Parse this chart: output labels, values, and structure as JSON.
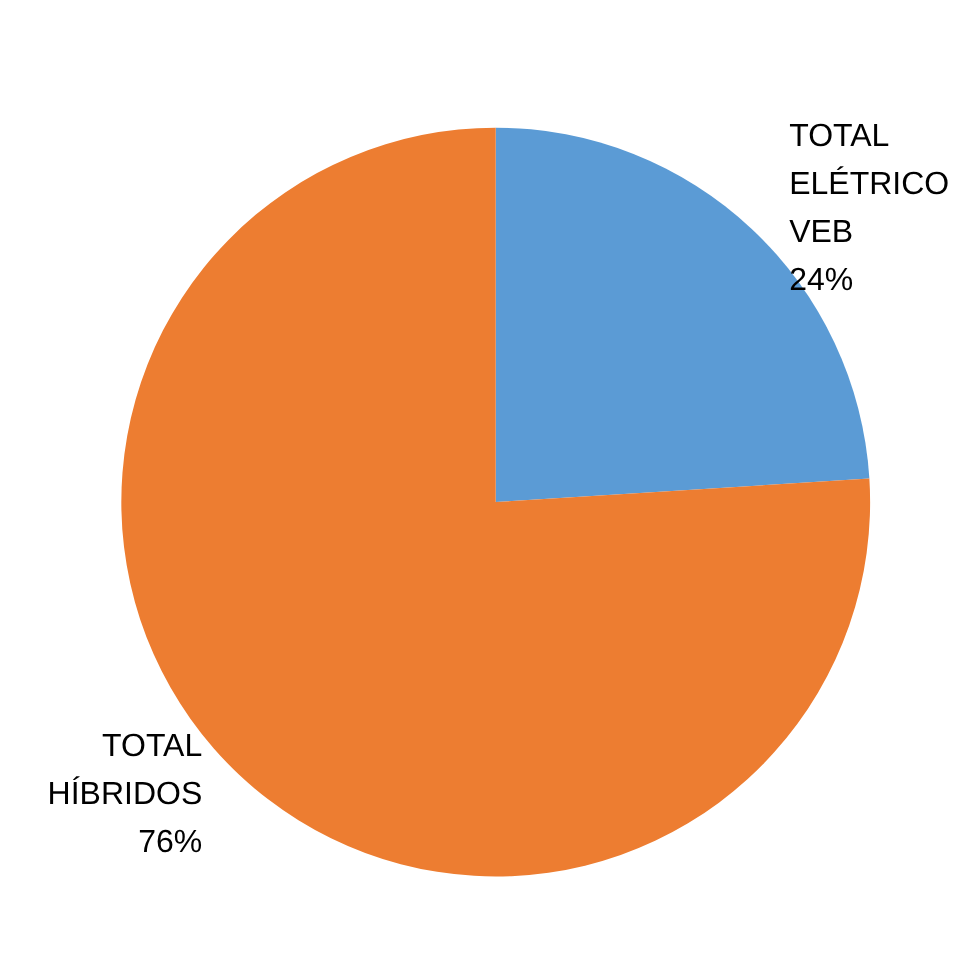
{
  "chart_data": {
    "type": "pie",
    "categories": [
      "TOTAL ELÉTRICO VEB",
      "TOTAL HÍBRIDOS"
    ],
    "values": [
      24,
      76
    ],
    "colors": [
      "#5b9bd5",
      "#ed7d31"
    ],
    "value_labels": [
      "24%",
      "76%"
    ],
    "legend": false
  }
}
